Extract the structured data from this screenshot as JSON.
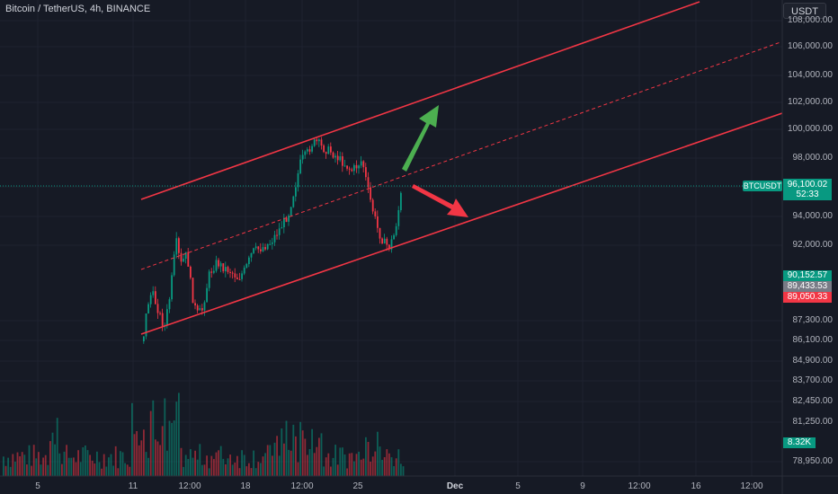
{
  "header": {
    "legend": "Bitcoin / TetherUS, 4h, BINANCE",
    "currency_button": "USDT"
  },
  "price_axis": {
    "labels": [
      "108,000.00",
      "106,000.00",
      "104,000.00",
      "102,000.00",
      "100,000.00",
      "98,000.00",
      "94,000.00",
      "92,000.00",
      "87,300.00",
      "86,100.00",
      "84,900.00",
      "83,700.00",
      "82,450.00",
      "81,250.00",
      "78,950.00"
    ]
  },
  "price_tags": {
    "last_price": {
      "symbol": "BTCUSDT",
      "price": "96,100.02",
      "countdown": "52:33",
      "color": "#089981"
    },
    "levels": [
      {
        "value": "90,152.57",
        "color": "#089981"
      },
      {
        "value": "89,433.53",
        "color": "#787b86"
      },
      {
        "value": "89,050.33",
        "color": "#f23645"
      }
    ],
    "volume": {
      "value": "8.32K",
      "color": "#089981"
    }
  },
  "time_axis": {
    "labels": [
      {
        "text": "5",
        "bold": false
      },
      {
        "text": "11",
        "bold": false
      },
      {
        "text": "12:00",
        "bold": false
      },
      {
        "text": "18",
        "bold": false
      },
      {
        "text": "12:00",
        "bold": false
      },
      {
        "text": "25",
        "bold": false
      },
      {
        "text": "Dec",
        "bold": true
      },
      {
        "text": "5",
        "bold": false
      },
      {
        "text": "9",
        "bold": false
      },
      {
        "text": "12:00",
        "bold": false
      },
      {
        "text": "16",
        "bold": false
      },
      {
        "text": "12:00",
        "bold": false
      }
    ]
  },
  "drawings": {
    "channel_color": "#f23645",
    "up_arrow_color": "#4caf50",
    "down_arrow_color": "#f23645"
  },
  "colors": {
    "background": "#161a25",
    "up": "#089981",
    "down": "#f23645"
  }
}
